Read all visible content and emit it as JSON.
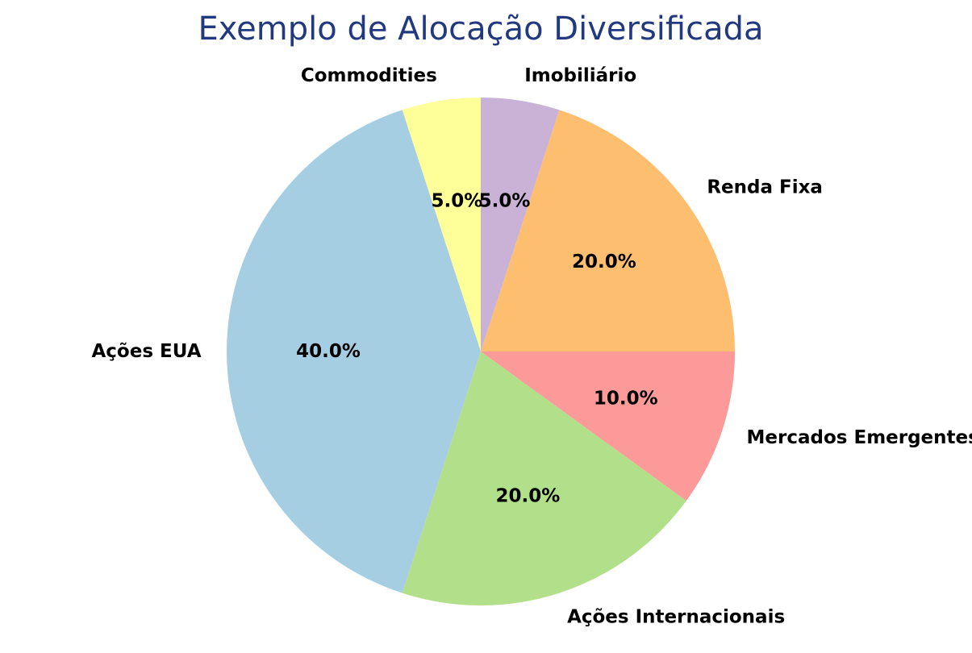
{
  "chart_data": {
    "type": "pie",
    "title": "Exemplo de Alocação Diversificada",
    "start_angle_deg": 90,
    "direction": "counterclockwise",
    "slices": [
      {
        "label": "Commodities",
        "value": 5.0,
        "pct_label": "5.0%",
        "color": "#ffff99"
      },
      {
        "label": "Ações EUA",
        "value": 40.0,
        "pct_label": "40.0%",
        "color": "#a6cee3"
      },
      {
        "label": "Ações Internacionais",
        "value": 20.0,
        "pct_label": "20.0%",
        "color": "#b2df8a"
      },
      {
        "label": "Mercados Emergentes",
        "value": 10.0,
        "pct_label": "10.0%",
        "color": "#fb9a99"
      },
      {
        "label": "Renda Fixa",
        "value": 20.0,
        "pct_label": "20.0%",
        "color": "#fdbf6f"
      },
      {
        "label": "Imobiliário",
        "value": 5.0,
        "pct_label": "5.0%",
        "color": "#cab2d6"
      }
    ]
  },
  "colors": {
    "title": "#22397f",
    "background": "#ffffff"
  }
}
